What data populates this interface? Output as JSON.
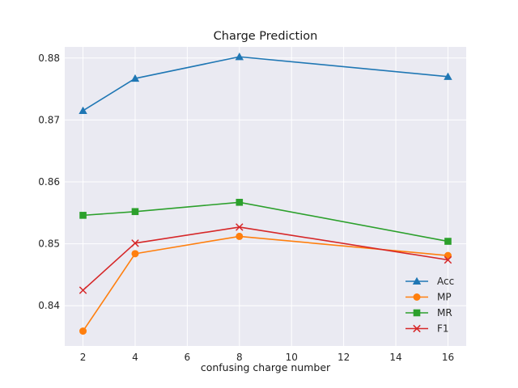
{
  "chart_data": {
    "type": "line",
    "title": "Charge Prediction",
    "xlabel": "confusing charge number",
    "ylabel": "",
    "x": [
      2,
      4,
      8,
      16
    ],
    "xlim": [
      1.3,
      16.7
    ],
    "ylim": [
      0.8335,
      0.8818
    ],
    "xticks": [
      2,
      4,
      6,
      8,
      10,
      12,
      14,
      16
    ],
    "yticks": [
      0.84,
      0.85,
      0.86,
      0.87,
      0.88
    ],
    "ytick_labels": [
      "0.84",
      "0.85",
      "0.86",
      "0.87",
      "0.88"
    ],
    "grid": true,
    "legend_position": "lower-right",
    "series": [
      {
        "name": "Acc",
        "values": [
          0.8715,
          0.8767,
          0.8802,
          0.877
        ],
        "color": "#1f77b4",
        "marker": "triangle"
      },
      {
        "name": "MP",
        "values": [
          0.8359,
          0.8484,
          0.8512,
          0.8481
        ],
        "color": "#ff7f0e",
        "marker": "circle"
      },
      {
        "name": "MR",
        "values": [
          0.8546,
          0.8552,
          0.8567,
          0.8504
        ],
        "color": "#2ca02c",
        "marker": "square"
      },
      {
        "name": "F1",
        "values": [
          0.8425,
          0.8501,
          0.8527,
          0.8474
        ],
        "color": "#d62728",
        "marker": "x"
      }
    ]
  }
}
